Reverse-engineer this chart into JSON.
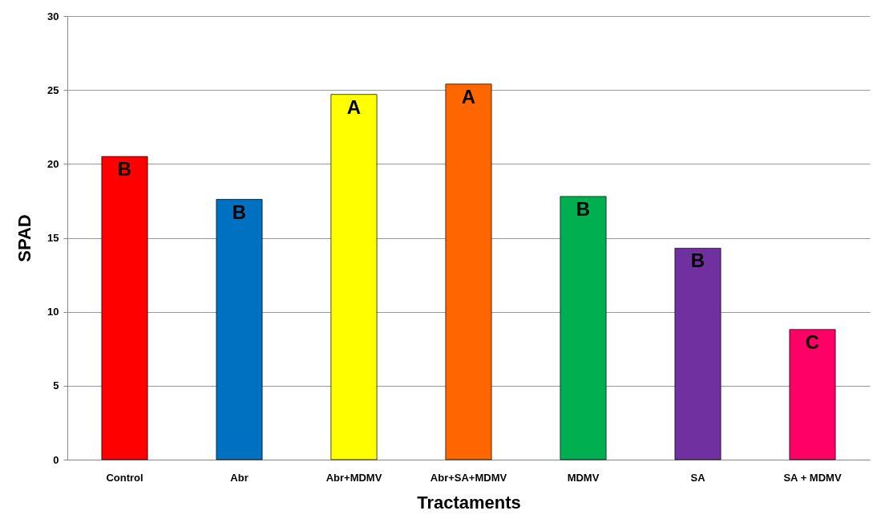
{
  "chart_data": {
    "type": "bar",
    "xlabel": "Tractaments",
    "ylabel": "SPAD",
    "categories": [
      "Control",
      "Abr",
      "Abr+MDMV",
      "Abr+SA+MDMV",
      "MDMV",
      "SA",
      "SA + MDMV"
    ],
    "values": [
      20.5,
      17.6,
      24.7,
      25.4,
      17.8,
      14.3,
      8.8
    ],
    "colors": [
      "#ff0000",
      "#0070c0",
      "#ffff00",
      "#ff6600",
      "#00b050",
      "#7030a0",
      "#ff0066"
    ],
    "ylim": [
      0,
      30
    ],
    "yticks": [
      0,
      5,
      10,
      15,
      20,
      25,
      30
    ],
    "grid": "y",
    "annotations": [
      {
        "text": "B",
        "x": "Control",
        "y": 20.5
      },
      {
        "text": "B",
        "x": "Abr",
        "y": 17.6
      },
      {
        "text": "A",
        "x": "Abr+MDMV",
        "y": 24.7
      },
      {
        "text": "A",
        "x": "Abr+SA+MDMV",
        "y": 25.4
      },
      {
        "text": "B",
        "x": "MDMV",
        "y": 17.8
      },
      {
        "text": "B",
        "x": "SA",
        "y": 14.3
      },
      {
        "text": "C",
        "x": "SA + MDMV",
        "y": 8.8
      }
    ]
  }
}
